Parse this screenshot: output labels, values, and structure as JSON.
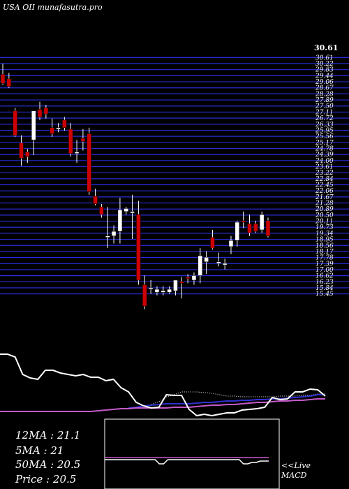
{
  "header": {
    "title": "USA OII munafasutra.pro"
  },
  "chart_data": {
    "type": "candlestick",
    "price_axis": {
      "ylim": [
        15.2,
        31.1
      ],
      "top_label": "30.61",
      "tick_labels": [
        "30.61",
        "30.22",
        "29.83",
        "29.44",
        "29.06",
        "28.67",
        "28.28",
        "27.89",
        "27.50",
        "27.11",
        "26.72",
        "26.33",
        "25.95",
        "25.56",
        "25.17",
        "24.78",
        "24.39",
        "24.00",
        "23.61",
        "23.22",
        "22.84",
        "22.45",
        "22.06",
        "21.67",
        "21.28",
        "20.89",
        "20.50",
        "20.11",
        "19.73",
        "19.34",
        "18.95",
        "18.56",
        "18.17",
        "17.78",
        "17.39",
        "17.00",
        "16.62",
        "16.23",
        "15.84",
        "15.45"
      ]
    },
    "candles": [
      {
        "o": 29.8,
        "h": 30.5,
        "l": 29.1,
        "c": 29.2
      },
      {
        "o": 29.5,
        "h": 29.9,
        "l": 28.9,
        "c": 29.0
      },
      {
        "o": 27.4,
        "h": 27.6,
        "l": 25.7,
        "c": 25.8
      },
      {
        "o": 25.3,
        "h": 25.8,
        "l": 23.8,
        "c": 24.3
      },
      {
        "o": 24.7,
        "h": 24.9,
        "l": 24.0,
        "c": 24.4
      },
      {
        "o": 25.5,
        "h": 27.4,
        "l": 24.5,
        "c": 27.4
      },
      {
        "o": 27.5,
        "h": 28.0,
        "l": 26.8,
        "c": 27.0
      },
      {
        "o": 27.6,
        "h": 27.8,
        "l": 26.9,
        "c": 27.2
      },
      {
        "o": 26.3,
        "h": 26.9,
        "l": 25.7,
        "c": 25.9
      },
      {
        "o": 26.3,
        "h": 26.6,
        "l": 26.0,
        "c": 26.3
      },
      {
        "o": 26.8,
        "h": 27.0,
        "l": 26.1,
        "c": 26.3
      },
      {
        "o": 26.2,
        "h": 26.6,
        "l": 24.4,
        "c": 24.6
      },
      {
        "o": 24.7,
        "h": 25.5,
        "l": 24.0,
        "c": 24.7
      },
      {
        "o": 25.6,
        "h": 26.2,
        "l": 24.8,
        "c": 25.4
      },
      {
        "o": 25.9,
        "h": 26.3,
        "l": 21.9,
        "c": 22.1
      },
      {
        "o": 21.8,
        "h": 22.3,
        "l": 21.2,
        "c": 21.3
      },
      {
        "o": 21.1,
        "h": 21.3,
        "l": 20.4,
        "c": 20.6
      },
      {
        "o": 19.2,
        "h": 21.1,
        "l": 18.4,
        "c": 19.2
      },
      {
        "o": 19.2,
        "h": 19.9,
        "l": 18.7,
        "c": 19.5
      },
      {
        "o": 19.5,
        "h": 21.7,
        "l": 18.7,
        "c": 20.9
      },
      {
        "o": 20.8,
        "h": 21.1,
        "l": 20.6,
        "c": 21.0
      },
      {
        "o": 20.7,
        "h": 21.9,
        "l": 19.0,
        "c": 20.8
      },
      {
        "o": 20.6,
        "h": 21.5,
        "l": 16.0,
        "c": 16.3
      },
      {
        "o": 16.0,
        "h": 16.6,
        "l": 14.4,
        "c": 14.6
      },
      {
        "o": 15.8,
        "h": 16.3,
        "l": 15.4,
        "c": 15.8
      },
      {
        "o": 15.5,
        "h": 15.9,
        "l": 15.3,
        "c": 15.7
      },
      {
        "o": 15.5,
        "h": 15.9,
        "l": 15.3,
        "c": 15.6
      },
      {
        "o": 15.5,
        "h": 15.9,
        "l": 15.4,
        "c": 15.7
      },
      {
        "o": 15.6,
        "h": 16.3,
        "l": 15.3,
        "c": 16.3
      },
      {
        "o": 16.2,
        "h": 16.5,
        "l": 15.1,
        "c": 16.1
      },
      {
        "o": 16.5,
        "h": 16.7,
        "l": 16.1,
        "c": 16.4
      },
      {
        "o": 16.3,
        "h": 16.8,
        "l": 16.0,
        "c": 16.6
      },
      {
        "o": 16.6,
        "h": 18.4,
        "l": 16.1,
        "c": 17.9
      },
      {
        "o": 17.5,
        "h": 18.2,
        "l": 16.7,
        "c": 17.8
      },
      {
        "o": 19.1,
        "h": 19.6,
        "l": 18.3,
        "c": 18.4
      },
      {
        "o": 17.4,
        "h": 18.1,
        "l": 17.2,
        "c": 17.5
      },
      {
        "o": 17.3,
        "h": 17.7,
        "l": 17.0,
        "c": 17.4
      },
      {
        "o": 18.5,
        "h": 19.2,
        "l": 18.0,
        "c": 18.9
      },
      {
        "o": 18.9,
        "h": 20.2,
        "l": 18.5,
        "c": 20.1
      },
      {
        "o": 20.2,
        "h": 20.8,
        "l": 19.7,
        "c": 20.1
      },
      {
        "o": 20.0,
        "h": 20.6,
        "l": 19.2,
        "c": 19.4
      },
      {
        "o": 20.0,
        "h": 20.2,
        "l": 19.4,
        "c": 19.5
      },
      {
        "o": 19.6,
        "h": 20.8,
        "l": 19.4,
        "c": 20.6
      },
      {
        "o": 20.2,
        "h": 20.4,
        "l": 19.1,
        "c": 19.2
      }
    ],
    "ma_panel": {
      "price_line": [
        0.02,
        0.02,
        0.06,
        0.31,
        0.36,
        0.38,
        0.25,
        0.25,
        0.29,
        0.31,
        0.33,
        0.31,
        0.35,
        0.35,
        0.4,
        0.38,
        0.5,
        0.56,
        0.71,
        0.76,
        0.79,
        0.78,
        0.6,
        0.61,
        0.61,
        0.81,
        0.9,
        0.88,
        0.9,
        0.88,
        0.86,
        0.86,
        0.82,
        0.81,
        0.8,
        0.78,
        0.64,
        0.67,
        0.66,
        0.56,
        0.56,
        0.52,
        0.53,
        0.62
      ],
      "ma_purple": [
        0.84,
        0.84,
        0.84,
        0.84,
        0.84,
        0.84,
        0.84,
        0.84,
        0.84,
        0.84,
        0.84,
        0.84,
        0.84,
        0.83,
        0.82,
        0.81,
        0.8,
        0.8,
        0.79,
        0.79,
        0.79,
        0.79,
        0.79,
        0.78,
        0.78,
        0.78,
        0.77,
        0.76,
        0.75,
        0.75,
        0.74,
        0.74,
        0.73,
        0.72,
        0.71,
        0.71,
        0.7,
        0.69,
        0.69,
        0.68,
        0.68,
        0.67,
        0.66,
        0.66
      ],
      "ma_blue": [
        null,
        null,
        null,
        null,
        null,
        null,
        null,
        null,
        null,
        null,
        null,
        null,
        null,
        null,
        null,
        null,
        null,
        0.79,
        0.78,
        0.76,
        0.75,
        0.74,
        0.73,
        0.73,
        0.73,
        0.73,
        0.72,
        0.71,
        0.71,
        0.7,
        0.69,
        0.69,
        0.68,
        0.68,
        0.67,
        0.67,
        0.66,
        0.66,
        0.65,
        0.64,
        0.63,
        0.62,
        0.6,
        0.6
      ],
      "ma_white_dotted": [
        null,
        null,
        null,
        null,
        null,
        null,
        null,
        null,
        null,
        null,
        null,
        null,
        null,
        null,
        null,
        null,
        null,
        null,
        null,
        null,
        0.74,
        0.7,
        0.63,
        0.6,
        0.56,
        0.56,
        0.56,
        0.57,
        0.58,
        0.6,
        0.62,
        0.62,
        0.63,
        0.63,
        0.63,
        0.63,
        0.63,
        0.62,
        0.62,
        0.62,
        0.61,
        0.61,
        0.59,
        0.59
      ]
    },
    "macd_panel": {
      "signal_line": [
        0.55,
        0.55,
        0.55,
        0.55,
        0.55,
        0.55,
        0.55,
        0.55,
        0.55,
        0.55,
        0.55,
        0.55,
        0.55,
        0.55,
        0.55,
        0.55,
        0.55,
        0.55,
        0.55,
        0.55,
        0.55,
        0.55,
        0.55,
        0.55,
        0.55,
        0.55,
        0.55,
        0.55,
        0.55,
        0.55,
        0.55,
        0.55,
        0.55,
        0.55,
        0.55,
        0.55,
        0.55,
        0.55,
        0.55,
        0.55
      ],
      "macd_line": [
        0.58,
        0.58,
        0.58,
        0.58,
        0.58,
        0.58,
        0.58,
        0.58,
        0.58,
        0.58,
        0.58,
        0.58,
        0.58,
        0.64,
        0.64,
        0.58,
        0.58,
        0.58,
        0.58,
        0.58,
        0.58,
        0.58,
        0.58,
        0.58,
        0.58,
        0.58,
        0.58,
        0.58,
        0.58,
        0.58,
        0.58,
        0.58,
        0.58,
        0.64,
        0.64,
        0.62,
        0.62,
        0.6,
        0.6,
        0.6
      ]
    }
  },
  "stats": {
    "ma12": "12MA : 21.1",
    "ma5": "5MA : 21",
    "ma50": "50MA : 20.5",
    "price": "Price   : 20.5"
  },
  "macd_label": {
    "line1": "<<Live",
    "line2": "MACD"
  },
  "colors": {
    "up": "#ffffff",
    "down": "#cc0000",
    "grid": "#2b2bd6",
    "ma_purple": "#c45ac8",
    "ma_blue": "#3030d0"
  }
}
